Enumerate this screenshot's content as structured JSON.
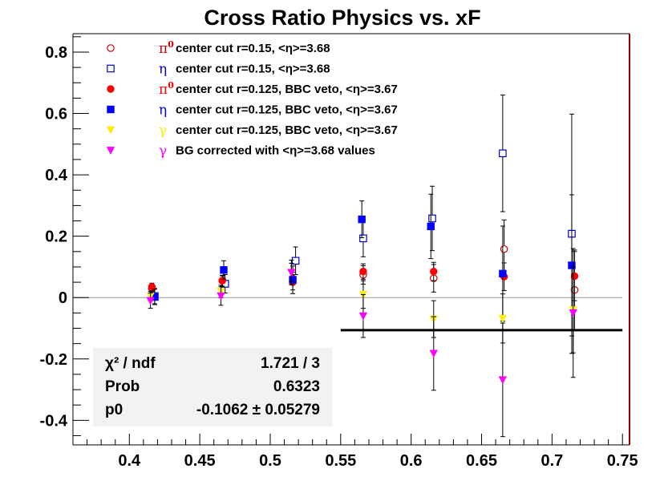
{
  "chart_data": {
    "type": "scatter",
    "title": "Cross Ratio Physics vs. xF",
    "xlabel": "",
    "ylabel": "",
    "xlim": [
      0.36,
      0.755
    ],
    "ylim": [
      -0.48,
      0.86
    ],
    "x_ticks": [
      "0.4",
      "0.45",
      "0.5",
      "0.55",
      "0.6",
      "0.65",
      "0.7",
      "0.75"
    ],
    "y_ticks": [
      "-0.4",
      "-0.2",
      "0",
      "0.2",
      "0.4",
      "0.6",
      "0.8"
    ],
    "grid": false,
    "legend_position": "top-left",
    "series": [
      {
        "name": "center cut r=0.15, <η>=3.68",
        "symbol_label": "π0",
        "marker": "open-circle",
        "color": "#cc0000",
        "x": [
          0.416,
          0.466,
          0.516,
          0.566,
          0.616,
          0.666,
          0.716
        ],
        "y": [
          0.03,
          0.055,
          0.062,
          0.074,
          0.063,
          0.158,
          0.025
        ],
        "yerr": [
          0.012,
          0.016,
          0.02,
          0.03,
          0.045,
          0.095,
          0.13
        ]
      },
      {
        "name": "center cut r=0.15, <η>=3.68",
        "symbol_label": "η",
        "marker": "open-square",
        "color": "#0000cc",
        "x": [
          0.418,
          0.468,
          0.518,
          0.566,
          0.615,
          0.665,
          0.714
        ],
        "y": [
          0.005,
          0.045,
          0.12,
          0.193,
          0.258,
          0.47,
          0.208
        ],
        "yerr": [
          0.025,
          0.03,
          0.045,
          0.06,
          0.105,
          0.19,
          0.39
        ]
      },
      {
        "name": "center cut r=0.125, BBC veto, <η>=3.67",
        "symbol_label": "π0",
        "marker": "filled-circle",
        "color": "#ff0000",
        "x": [
          0.416,
          0.466,
          0.516,
          0.566,
          0.616,
          0.666,
          0.716
        ],
        "y": [
          0.035,
          0.055,
          0.05,
          0.085,
          0.085,
          0.068,
          0.07
        ],
        "yerr": [
          0.012,
          0.018,
          0.025,
          0.025,
          0.03,
          0.045,
          0.08
        ]
      },
      {
        "name": "center cut r=0.125, BBC veto, <η>=3.67",
        "symbol_label": "η",
        "marker": "filled-square",
        "color": "#0000ff",
        "x": [
          0.418,
          0.467,
          0.516,
          0.565,
          0.614,
          0.665,
          0.714
        ],
        "y": [
          0.002,
          0.09,
          0.058,
          0.255,
          0.232,
          0.078,
          0.105
        ],
        "yerr": [
          0.025,
          0.03,
          0.045,
          0.06,
          0.105,
          0.155,
          0.23
        ]
      },
      {
        "name": "center cut r=0.125, BBC veto, <η>=3.67",
        "symbol_label": "γ",
        "marker": "filled-triangle-down",
        "color": "#ffee00",
        "x": [
          0.415,
          0.465,
          0.515,
          0.566,
          0.616,
          0.665,
          0.715
        ],
        "y": [
          0.005,
          0.02,
          0.082,
          0.01,
          -0.07,
          -0.068,
          -0.04
        ],
        "yerr": [
          0.015,
          0.02,
          0.03,
          0.045,
          0.06,
          0.08,
          0.14
        ]
      },
      {
        "name": "BG corrected with <η>=3.68 values",
        "symbol_label": "γ",
        "marker": "filled-triangle-down",
        "color": "#ff00ff",
        "x": [
          0.415,
          0.465,
          0.515,
          0.566,
          0.616,
          0.665,
          0.715
        ],
        "y": [
          -0.01,
          0.005,
          0.082,
          -0.06,
          -0.182,
          -0.268,
          -0.05
        ],
        "yerr": [
          0.025,
          0.03,
          0.04,
          0.07,
          0.12,
          0.185,
          0.21
        ]
      }
    ],
    "fit": {
      "type": "constant",
      "x_range": [
        0.55,
        0.75
      ],
      "value": -0.1062,
      "color": "#000000"
    },
    "stats_box": {
      "rows": [
        {
          "label": "χ² / ndf",
          "value": "1.721 / 3"
        },
        {
          "label": "Prob",
          "value": "0.6323"
        },
        {
          "label": "p0",
          "value": "-0.1062 ± 0.05279"
        }
      ]
    }
  }
}
